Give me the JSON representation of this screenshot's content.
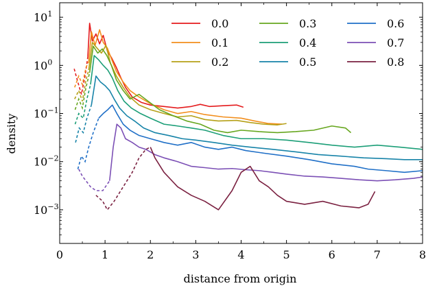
{
  "chart_data": {
    "type": "line",
    "title": "",
    "xlabel": "distance from origin",
    "ylabel": "density",
    "xlim": [
      0,
      8
    ],
    "ylim": [
      0.0002,
      20
    ],
    "yscale": "log",
    "grid": false,
    "legend_position": "top-right",
    "legend_columns": 3,
    "x_ticks": [
      0,
      1,
      2,
      3,
      4,
      5,
      6,
      7,
      8
    ],
    "x_tick_labels": [
      "0",
      "1",
      "2",
      "3",
      "4",
      "5",
      "6",
      "7",
      "8"
    ],
    "y_ticks": [
      0.001,
      0.01,
      0.1,
      1,
      10
    ],
    "y_tick_labels": [
      {
        "base": "10",
        "exp": "−3"
      },
      {
        "base": "10",
        "exp": "−2"
      },
      {
        "base": "10",
        "exp": "−1"
      },
      {
        "base": "10",
        "exp": "0"
      },
      {
        "base": "10",
        "exp": "1"
      }
    ],
    "series": [
      {
        "name": "0.0",
        "color": "#e41a1c",
        "dashed": [
          [
            0.32,
            0.85
          ],
          [
            0.4,
            0.45
          ],
          [
            0.48,
            0.25
          ],
          [
            0.56,
            0.6
          ],
          [
            0.62,
            1.5
          ]
        ],
        "solid": [
          [
            0.62,
            1.5
          ],
          [
            0.66,
            7.5
          ],
          [
            0.72,
            3.2
          ],
          [
            0.8,
            4.5
          ],
          [
            0.88,
            2.8
          ],
          [
            0.96,
            4.2
          ],
          [
            1.05,
            2.0
          ],
          [
            1.15,
            1.4
          ],
          [
            1.25,
            0.9
          ],
          [
            1.35,
            0.55
          ],
          [
            1.45,
            0.35
          ],
          [
            1.6,
            0.22
          ],
          [
            1.8,
            0.17
          ],
          [
            2.0,
            0.15
          ],
          [
            2.3,
            0.14
          ],
          [
            2.6,
            0.13
          ],
          [
            2.9,
            0.14
          ],
          [
            3.1,
            0.155
          ],
          [
            3.3,
            0.14
          ],
          [
            3.6,
            0.145
          ],
          [
            3.9,
            0.15
          ],
          [
            4.05,
            0.135
          ]
        ]
      },
      {
        "name": "0.1",
        "color": "#f28e1c",
        "dashed": [
          [
            0.33,
            0.35
          ],
          [
            0.42,
            0.6
          ],
          [
            0.5,
            0.4
          ],
          [
            0.58,
            0.9
          ],
          [
            0.64,
            1.2
          ]
        ],
        "solid": [
          [
            0.64,
            1.2
          ],
          [
            0.7,
            5.0
          ],
          [
            0.78,
            2.6
          ],
          [
            0.88,
            5.5
          ],
          [
            0.96,
            3.0
          ],
          [
            1.05,
            2.3
          ],
          [
            1.15,
            1.3
          ],
          [
            1.25,
            0.75
          ],
          [
            1.4,
            0.45
          ],
          [
            1.55,
            0.3
          ],
          [
            1.75,
            0.22
          ],
          [
            2.0,
            0.16
          ],
          [
            2.3,
            0.12
          ],
          [
            2.6,
            0.1
          ],
          [
            2.9,
            0.11
          ],
          [
            3.2,
            0.095
          ],
          [
            3.6,
            0.085
          ],
          [
            4.0,
            0.08
          ],
          [
            4.3,
            0.07
          ],
          [
            4.6,
            0.062
          ],
          [
            4.9,
            0.06
          ]
        ]
      },
      {
        "name": "0.2",
        "color": "#b5a017",
        "dashed": [
          [
            0.33,
            0.2
          ],
          [
            0.42,
            0.3
          ],
          [
            0.5,
            0.18
          ],
          [
            0.58,
            0.5
          ],
          [
            0.64,
            0.8
          ]
        ],
        "solid": [
          [
            0.64,
            0.8
          ],
          [
            0.72,
            3.0
          ],
          [
            0.82,
            2.3
          ],
          [
            0.92,
            1.8
          ],
          [
            1.02,
            2.6
          ],
          [
            1.12,
            1.1
          ],
          [
            1.25,
            0.6
          ],
          [
            1.4,
            0.35
          ],
          [
            1.55,
            0.22
          ],
          [
            1.75,
            0.15
          ],
          [
            2.0,
            0.12
          ],
          [
            2.3,
            0.1
          ],
          [
            2.6,
            0.085
          ],
          [
            2.9,
            0.09
          ],
          [
            3.2,
            0.075
          ],
          [
            3.5,
            0.07
          ],
          [
            3.9,
            0.072
          ],
          [
            4.2,
            0.065
          ],
          [
            4.5,
            0.06
          ],
          [
            4.8,
            0.058
          ],
          [
            5.0,
            0.062
          ]
        ]
      },
      {
        "name": "0.3",
        "color": "#66a61e",
        "dashed": [
          [
            0.34,
            0.12
          ],
          [
            0.42,
            0.2
          ],
          [
            0.5,
            0.13
          ],
          [
            0.58,
            0.35
          ],
          [
            0.66,
            0.7
          ]
        ],
        "solid": [
          [
            0.66,
            0.7
          ],
          [
            0.74,
            2.5
          ],
          [
            0.84,
            1.8
          ],
          [
            0.94,
            2.2
          ],
          [
            1.04,
            1.6
          ],
          [
            1.14,
            1.0
          ],
          [
            1.25,
            0.5
          ],
          [
            1.4,
            0.3
          ],
          [
            1.55,
            0.2
          ],
          [
            1.75,
            0.25
          ],
          [
            1.95,
            0.18
          ],
          [
            2.2,
            0.12
          ],
          [
            2.5,
            0.09
          ],
          [
            2.8,
            0.07
          ],
          [
            3.1,
            0.06
          ],
          [
            3.4,
            0.045
          ],
          [
            3.7,
            0.04
          ],
          [
            4.0,
            0.045
          ],
          [
            4.4,
            0.042
          ],
          [
            4.8,
            0.04
          ],
          [
            5.2,
            0.042
          ],
          [
            5.6,
            0.045
          ],
          [
            6.0,
            0.055
          ],
          [
            6.3,
            0.05
          ],
          [
            6.42,
            0.04
          ]
        ]
      },
      {
        "name": "0.4",
        "color": "#1b9e77",
        "dashed": [
          [
            0.34,
            0.06
          ],
          [
            0.42,
            0.1
          ],
          [
            0.52,
            0.08
          ],
          [
            0.6,
            0.2
          ],
          [
            0.68,
            0.4
          ]
        ],
        "solid": [
          [
            0.68,
            0.4
          ],
          [
            0.76,
            1.6
          ],
          [
            0.86,
            1.3
          ],
          [
            0.96,
            1.0
          ],
          [
            1.06,
            0.8
          ],
          [
            1.16,
            0.55
          ],
          [
            1.28,
            0.3
          ],
          [
            1.42,
            0.18
          ],
          [
            1.58,
            0.13
          ],
          [
            1.78,
            0.1
          ],
          [
            2.0,
            0.08
          ],
          [
            2.3,
            0.06
          ],
          [
            2.6,
            0.055
          ],
          [
            2.9,
            0.05
          ],
          [
            3.2,
            0.045
          ],
          [
            3.6,
            0.035
          ],
          [
            4.0,
            0.03
          ],
          [
            4.5,
            0.03
          ],
          [
            5.0,
            0.028
          ],
          [
            5.5,
            0.025
          ],
          [
            6.0,
            0.022
          ],
          [
            6.5,
            0.02
          ],
          [
            7.0,
            0.022
          ],
          [
            7.5,
            0.02
          ],
          [
            8.0,
            0.018
          ]
        ]
      },
      {
        "name": "0.5",
        "color": "#1683a8",
        "dashed": [
          [
            0.35,
            0.025
          ],
          [
            0.43,
            0.05
          ],
          [
            0.52,
            0.04
          ],
          [
            0.6,
            0.08
          ],
          [
            0.7,
            0.15
          ]
        ],
        "solid": [
          [
            0.7,
            0.15
          ],
          [
            0.8,
            0.6
          ],
          [
            0.9,
            0.45
          ],
          [
            1.0,
            0.38
          ],
          [
            1.1,
            0.3
          ],
          [
            1.2,
            0.2
          ],
          [
            1.32,
            0.13
          ],
          [
            1.48,
            0.09
          ],
          [
            1.65,
            0.07
          ],
          [
            1.85,
            0.05
          ],
          [
            2.1,
            0.04
          ],
          [
            2.4,
            0.035
          ],
          [
            2.7,
            0.03
          ],
          [
            3.0,
            0.028
          ],
          [
            3.4,
            0.025
          ],
          [
            3.8,
            0.022
          ],
          [
            4.2,
            0.02
          ],
          [
            4.7,
            0.018
          ],
          [
            5.2,
            0.016
          ],
          [
            5.7,
            0.014
          ],
          [
            6.2,
            0.013
          ],
          [
            6.7,
            0.012
          ],
          [
            7.2,
            0.0115
          ],
          [
            7.6,
            0.011
          ],
          [
            8.0,
            0.011
          ]
        ]
      },
      {
        "name": "0.6",
        "color": "#1f6fc7",
        "dashed": [
          [
            0.4,
            0.007
          ],
          [
            0.48,
            0.013
          ],
          [
            0.56,
            0.01
          ],
          [
            0.64,
            0.02
          ],
          [
            0.74,
            0.04
          ],
          [
            0.86,
            0.08
          ]
        ],
        "solid": [
          [
            0.86,
            0.08
          ],
          [
            0.96,
            0.1
          ],
          [
            1.06,
            0.12
          ],
          [
            1.16,
            0.15
          ],
          [
            1.26,
            0.1
          ],
          [
            1.4,
            0.06
          ],
          [
            1.55,
            0.045
          ],
          [
            1.75,
            0.035
          ],
          [
            2.0,
            0.03
          ],
          [
            2.3,
            0.025
          ],
          [
            2.6,
            0.022
          ],
          [
            2.9,
            0.025
          ],
          [
            3.2,
            0.02
          ],
          [
            3.5,
            0.018
          ],
          [
            3.8,
            0.02
          ],
          [
            4.1,
            0.017
          ],
          [
            4.5,
            0.015
          ],
          [
            5.0,
            0.013
          ],
          [
            5.5,
            0.011
          ],
          [
            6.0,
            0.009
          ],
          [
            6.5,
            0.008
          ],
          [
            6.8,
            0.007
          ],
          [
            7.2,
            0.0065
          ],
          [
            7.6,
            0.006
          ],
          [
            8.0,
            0.0065
          ]
        ]
      },
      {
        "name": "0.7",
        "color": "#7b4fb5",
        "dashed": [
          [
            0.42,
            0.007
          ],
          [
            0.5,
            0.005
          ],
          [
            0.58,
            0.004
          ],
          [
            0.68,
            0.003
          ],
          [
            0.8,
            0.0025
          ],
          [
            0.95,
            0.0025
          ],
          [
            1.1,
            0.004
          ]
        ],
        "solid": [
          [
            1.1,
            0.004
          ],
          [
            1.18,
            0.02
          ],
          [
            1.26,
            0.06
          ],
          [
            1.35,
            0.05
          ],
          [
            1.45,
            0.03
          ],
          [
            1.6,
            0.025
          ],
          [
            1.75,
            0.02
          ],
          [
            1.9,
            0.018
          ],
          [
            2.1,
            0.014
          ],
          [
            2.3,
            0.012
          ],
          [
            2.6,
            0.01
          ],
          [
            2.9,
            0.008
          ],
          [
            3.2,
            0.0075
          ],
          [
            3.5,
            0.007
          ],
          [
            3.8,
            0.0072
          ],
          [
            4.1,
            0.0068
          ],
          [
            4.4,
            0.0065
          ],
          [
            4.7,
            0.006
          ],
          [
            5.0,
            0.0055
          ],
          [
            5.4,
            0.005
          ],
          [
            5.8,
            0.0048
          ],
          [
            6.2,
            0.0045
          ],
          [
            6.6,
            0.0042
          ],
          [
            7.0,
            0.004
          ],
          [
            7.4,
            0.0042
          ],
          [
            7.8,
            0.0045
          ],
          [
            8.0,
            0.0048
          ]
        ]
      },
      {
        "name": "0.8",
        "color": "#7a2040",
        "dashed": [
          [
            0.8,
            0.002
          ],
          [
            0.95,
            0.0015
          ],
          [
            1.05,
            0.001
          ],
          [
            1.2,
            0.0015
          ],
          [
            1.4,
            0.003
          ],
          [
            1.6,
            0.006
          ],
          [
            1.75,
            0.012
          ],
          [
            1.9,
            0.018
          ],
          [
            2.0,
            0.02
          ]
        ],
        "solid": [
          [
            2.0,
            0.02
          ],
          [
            2.1,
            0.012
          ],
          [
            2.3,
            0.006
          ],
          [
            2.6,
            0.003
          ],
          [
            2.9,
            0.002
          ],
          [
            3.2,
            0.0015
          ],
          [
            3.5,
            0.001
          ],
          [
            3.8,
            0.0025
          ],
          [
            4.0,
            0.006
          ],
          [
            4.2,
            0.008
          ],
          [
            4.4,
            0.004
          ],
          [
            4.6,
            0.003
          ],
          [
            4.8,
            0.002
          ],
          [
            5.0,
            0.0015
          ],
          [
            5.4,
            0.0013
          ],
          [
            5.8,
            0.0015
          ],
          [
            6.2,
            0.0012
          ],
          [
            6.6,
            0.0011
          ],
          [
            6.8,
            0.0013
          ],
          [
            6.95,
            0.0024
          ]
        ]
      }
    ]
  }
}
